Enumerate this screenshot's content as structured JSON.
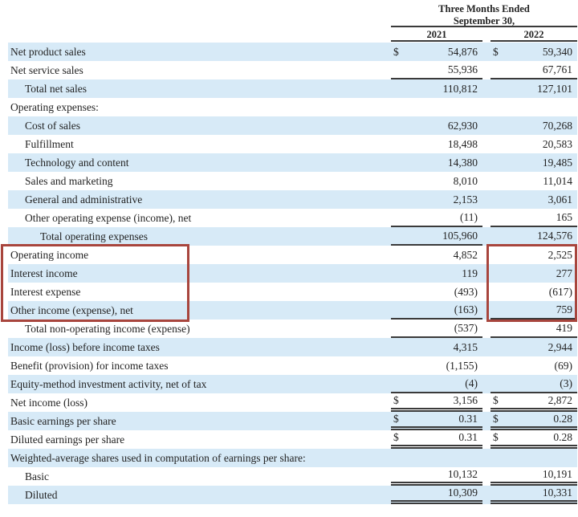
{
  "header": {
    "period_line1": "Three Months Ended",
    "period_line2": "September 30,",
    "col_2021": "2021",
    "col_2022": "2022"
  },
  "currency_symbol": "$",
  "colors": {
    "stripe": "#d7eaf7",
    "rule": "#3a3a3a",
    "highlight_red": "#a8453d",
    "text": "#232323"
  },
  "table": {
    "rows": [
      {
        "label": "Net product sales",
        "indent": 0,
        "shaded": true,
        "dollar": true,
        "v2021": "54,876",
        "v2022": "59,340",
        "underline": "none"
      },
      {
        "label": "Net service sales",
        "indent": 0,
        "shaded": false,
        "dollar": false,
        "v2021": "55,936",
        "v2022": "67,761",
        "underline": "single"
      },
      {
        "label": "Total net sales",
        "indent": 1,
        "shaded": true,
        "dollar": false,
        "v2021": "110,812",
        "v2022": "127,101",
        "underline": "none"
      },
      {
        "label": "Operating expenses:",
        "indent": 0,
        "shaded": false,
        "dollar": false,
        "v2021": "",
        "v2022": "",
        "underline": "none"
      },
      {
        "label": "Cost of sales",
        "indent": 1,
        "shaded": true,
        "dollar": false,
        "v2021": "62,930",
        "v2022": "70,268",
        "underline": "none"
      },
      {
        "label": "Fulfillment",
        "indent": 1,
        "shaded": false,
        "dollar": false,
        "v2021": "18,498",
        "v2022": "20,583",
        "underline": "none"
      },
      {
        "label": "Technology and content",
        "indent": 1,
        "shaded": true,
        "dollar": false,
        "v2021": "14,380",
        "v2022": "19,485",
        "underline": "none"
      },
      {
        "label": "Sales and marketing",
        "indent": 1,
        "shaded": false,
        "dollar": false,
        "v2021": "8,010",
        "v2022": "11,014",
        "underline": "none"
      },
      {
        "label": "General and administrative",
        "indent": 1,
        "shaded": true,
        "dollar": false,
        "v2021": "2,153",
        "v2022": "3,061",
        "underline": "none"
      },
      {
        "label": "Other operating expense (income), net",
        "indent": 1,
        "shaded": false,
        "dollar": false,
        "v2021": "(11)",
        "v2022": "165",
        "underline": "single"
      },
      {
        "label": "Total operating expenses",
        "indent": 2,
        "shaded": true,
        "dollar": false,
        "v2021": "105,960",
        "v2022": "124,576",
        "underline": "single"
      },
      {
        "label": "Operating income",
        "indent": 0,
        "shaded": false,
        "dollar": false,
        "v2021": "4,852",
        "v2022": "2,525",
        "underline": "none",
        "highlighted": true
      },
      {
        "label": "Interest income",
        "indent": 0,
        "shaded": true,
        "dollar": false,
        "v2021": "119",
        "v2022": "277",
        "underline": "none",
        "highlighted": true
      },
      {
        "label": "Interest expense",
        "indent": 0,
        "shaded": false,
        "dollar": false,
        "v2021": "(493)",
        "v2022": "(617)",
        "underline": "none",
        "highlighted": true
      },
      {
        "label": "Other income (expense), net",
        "indent": 0,
        "shaded": true,
        "dollar": false,
        "v2021": "(163)",
        "v2022": "759",
        "underline": "single",
        "highlighted": true
      },
      {
        "label": "Total non-operating income (expense)",
        "indent": 1,
        "shaded": false,
        "dollar": false,
        "v2021": "(537)",
        "v2022": "419",
        "underline": "single"
      },
      {
        "label": "Income (loss) before income taxes",
        "indent": 0,
        "shaded": true,
        "dollar": false,
        "v2021": "4,315",
        "v2022": "2,944",
        "underline": "none"
      },
      {
        "label": "Benefit (provision) for income taxes",
        "indent": 0,
        "shaded": false,
        "dollar": false,
        "v2021": "(1,155)",
        "v2022": "(69)",
        "underline": "none"
      },
      {
        "label": "Equity-method investment activity, net of tax",
        "indent": 0,
        "shaded": true,
        "dollar": false,
        "v2021": "(4)",
        "v2022": "(3)",
        "underline": "single"
      },
      {
        "label": "Net income (loss)",
        "indent": 0,
        "shaded": false,
        "dollar": true,
        "v2021": "3,156",
        "v2022": "2,872",
        "underline": "double"
      },
      {
        "label": "Basic earnings per share",
        "indent": 0,
        "shaded": true,
        "dollar": true,
        "v2021": "0.31",
        "v2022": "0.28",
        "underline": "double"
      },
      {
        "label": "Diluted earnings per share",
        "indent": 0,
        "shaded": false,
        "dollar": true,
        "v2021": "0.31",
        "v2022": "0.28",
        "underline": "double"
      },
      {
        "label": "Weighted-average shares used in computation of earnings per share:",
        "indent": 0,
        "shaded": true,
        "dollar": false,
        "v2021": "",
        "v2022": "",
        "underline": "none"
      },
      {
        "label": "Basic",
        "indent": 1,
        "shaded": false,
        "dollar": false,
        "v2021": "10,132",
        "v2022": "10,191",
        "underline": "double"
      },
      {
        "label": "Diluted",
        "indent": 1,
        "shaded": true,
        "dollar": false,
        "v2021": "10,309",
        "v2022": "10,331",
        "underline": "double"
      }
    ]
  },
  "highlights": {
    "boxed_row_labels": [
      "Operating income",
      "Interest income",
      "Interest expense",
      "Other income (expense), net"
    ],
    "boxed_value_column": "2022"
  }
}
